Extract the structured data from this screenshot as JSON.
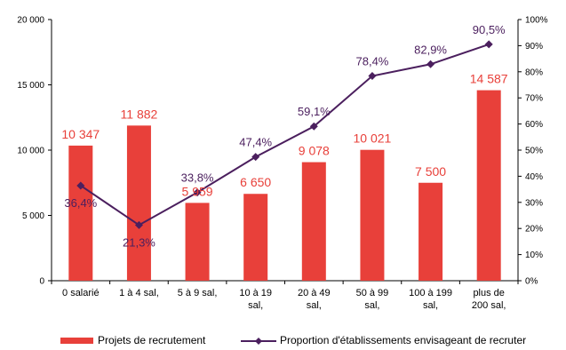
{
  "chart_data": {
    "type": "bar",
    "categories": [
      [
        "0 salarié"
      ],
      [
        "1 à 4 sal,"
      ],
      [
        "5 à 9 sal,"
      ],
      [
        "10 à 19",
        "sal,"
      ],
      [
        "20 à 49",
        "sal,"
      ],
      [
        "50 à 99",
        "sal,"
      ],
      [
        "100 à 199",
        "sal,"
      ],
      [
        "plus de",
        "200 sal,"
      ]
    ],
    "series": [
      {
        "name": "Projets de recrutement",
        "type": "bar",
        "axis": "left",
        "color": "#e8403a",
        "values": [
          10347,
          11882,
          5959,
          6650,
          9078,
          10021,
          7500,
          14587
        ],
        "labels": [
          "10 347",
          "11 882",
          "5 959",
          "6 650",
          "9 078",
          "10 021",
          "7 500",
          "14 587"
        ]
      },
      {
        "name": "Proportion d'établissements envisageant de recruter",
        "type": "line",
        "axis": "right",
        "color": "#4b1f5e",
        "values": [
          36.4,
          21.3,
          33.8,
          47.4,
          59.1,
          78.4,
          82.9,
          90.5
        ],
        "labels": [
          "36,4%",
          "21,3%",
          "33,8%",
          "47,4%",
          "59,1%",
          "78,4%",
          "82,9%",
          "90,5%"
        ]
      }
    ],
    "y_left": {
      "min": 0,
      "max": 20000,
      "ticks": [
        "0",
        "5 000",
        "10 000",
        "15 000",
        "20 000"
      ]
    },
    "y_right": {
      "min": 0,
      "max": 100,
      "ticks": [
        "0%",
        "10%",
        "20%",
        "30%",
        "40%",
        "50%",
        "60%",
        "70%",
        "80%",
        "90%",
        "100%"
      ]
    },
    "legend": "bottom",
    "grid": false
  }
}
